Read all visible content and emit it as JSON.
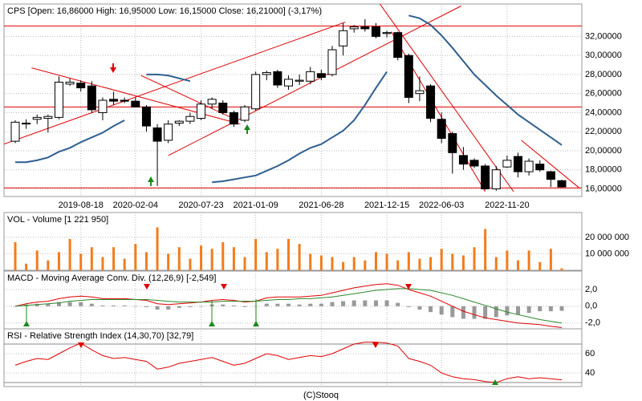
{
  "chart_data": [
    {
      "type": "candlestick",
      "title": "CPS [Open: 16,86000 High: 16,95000 Low: 16,15000 Close: 16,21000] (-3,17%)",
      "categories": [
        null,
        null,
        null,
        null,
        null,
        null,
        "2019-08-18",
        null,
        null,
        null,
        null,
        "2020-02-04",
        null,
        null,
        null,
        null,
        null,
        "2020-07-23",
        null,
        null,
        null,
        null,
        "2021-01-09",
        null,
        null,
        null,
        null,
        null,
        "2021-06-28",
        null,
        null,
        null,
        null,
        null,
        "2021-12-15",
        null,
        null,
        null,
        null,
        "2022-06-03",
        null,
        null,
        null,
        null,
        null,
        "2022-11-20",
        null,
        null,
        null,
        null,
        null
      ],
      "open": [
        21.0,
        22.8,
        23.3,
        23.4,
        23.5,
        27.0,
        27.1,
        26.8,
        24.0,
        25.4,
        25.3,
        25.2,
        24.6,
        22.4,
        21.1,
        22.9,
        23.1,
        23.4,
        24.9,
        25.0,
        24.0,
        23.2,
        24.4,
        28.0,
        28.3,
        26.8,
        27.3,
        27.3,
        28.1,
        28.0,
        31.0,
        32.8,
        33.0,
        33.0,
        32.3,
        32.4,
        30.0,
        26.0,
        26.8,
        23.3,
        21.8,
        19.5,
        19.0,
        18.4,
        16.0,
        18.3,
        19.4,
        17.8,
        18.6,
        17.8,
        16.86
      ],
      "high": [
        23.2,
        23.3,
        23.8,
        23.8,
        27.8,
        27.6,
        27.4,
        27.3,
        25.6,
        26.2,
        25.6,
        25.6,
        24.8,
        22.8,
        23.2,
        23.2,
        24.0,
        25.3,
        25.6,
        25.3,
        24.2,
        24.8,
        28.3,
        28.4,
        28.5,
        27.9,
        28.0,
        28.8,
        28.5,
        31.0,
        33.4,
        33.2,
        33.8,
        33.4,
        32.6,
        32.5,
        30.2,
        27.8,
        27.0,
        24.0,
        22.0,
        20.4,
        19.2,
        18.6,
        18.4,
        19.5,
        19.8,
        19.2,
        19.0,
        17.9,
        16.95
      ],
      "low": [
        20.8,
        22.3,
        22.8,
        21.9,
        23.3,
        26.8,
        26.2,
        24.0,
        23.2,
        24.8,
        25.0,
        24.8,
        22.0,
        16.3,
        20.8,
        22.6,
        22.8,
        23.2,
        24.4,
        23.8,
        22.5,
        23.0,
        24.2,
        27.4,
        26.6,
        26.4,
        26.9,
        27.0,
        27.4,
        27.8,
        30.0,
        32.4,
        32.5,
        31.8,
        31.9,
        29.5,
        25.0,
        25.2,
        23.0,
        20.8,
        17.6,
        18.0,
        18.2,
        15.9,
        15.8,
        18.2,
        17.2,
        17.4,
        17.8,
        16.2,
        16.15
      ],
      "close": [
        23.0,
        22.9,
        23.5,
        23.6,
        27.2,
        27.2,
        26.6,
        24.3,
        25.3,
        25.2,
        25.2,
        24.6,
        22.6,
        21.0,
        22.8,
        23.1,
        23.6,
        24.9,
        25.4,
        24.0,
        22.8,
        24.6,
        28.0,
        28.2,
        26.9,
        27.5,
        27.4,
        28.3,
        27.7,
        30.6,
        32.6,
        33.0,
        32.8,
        32.0,
        32.4,
        29.8,
        25.6,
        26.3,
        23.4,
        21.3,
        19.8,
        18.6,
        18.4,
        16.0,
        18.0,
        19.0,
        17.8,
        18.9,
        18.0,
        17.0,
        16.21
      ],
      "ma": {
        "color": "#2f5f8f",
        "values": [
          18.8,
          18.8,
          19.0,
          19.3,
          19.9,
          20.3,
          20.9,
          21.4,
          21.9,
          22.6,
          23.2,
          null,
          28.0,
          28.0,
          27.9,
          27.6,
          27.3,
          null,
          16.7,
          16.8,
          17.0,
          17.2,
          17.4,
          17.9,
          18.4,
          19.0,
          19.7,
          20.3,
          20.7,
          21.4,
          22.1,
          23.2,
          24.8,
          26.6,
          28.3,
          null,
          34.2,
          33.9,
          33.2,
          32.1,
          30.8,
          29.4,
          28.0,
          26.9,
          25.8,
          24.8,
          23.8,
          23.0,
          22.2,
          21.4,
          20.6
        ]
      },
      "line_color": "#e00000",
      "hlines": [
        33.1,
        24.6,
        16.1
      ],
      "trend_lines": [
        {
          "from": [
            -1.03,
            20.7
          ],
          "to": [
            30.2,
            33.5
          ]
        },
        {
          "from": [
            1.5,
            28.7
          ],
          "to": [
            20.6,
            22.8
          ]
        },
        {
          "from": [
            11.5,
            27.9
          ],
          "to": [
            20.3,
            23.2
          ]
        },
        {
          "from": [
            14.0,
            19.5
          ],
          "to": [
            40.8,
            35.2
          ]
        },
        {
          "from": [
            33.3,
            35.5
          ],
          "to": [
            45.6,
            15.7
          ]
        },
        {
          "from": [
            34.4,
            32.5
          ],
          "to": [
            43.0,
            15.7
          ]
        },
        {
          "from": [
            46.3,
            21.1
          ],
          "to": [
            51.6,
            16.1
          ]
        }
      ],
      "ylim": [
        15.2,
        35.4
      ],
      "yticks": [
        {
          "value": 16,
          "label": "16,00000"
        },
        {
          "value": 18,
          "label": "18,00000"
        },
        {
          "value": 20,
          "label": "20,00000"
        },
        {
          "value": 22,
          "label": "22,00000"
        },
        {
          "value": 24,
          "label": "24,00000"
        },
        {
          "value": 26,
          "label": "26,00000"
        },
        {
          "value": 28,
          "label": "28,00000"
        },
        {
          "value": 30,
          "label": "30,00000"
        },
        {
          "value": 32,
          "label": "32,00000"
        }
      ],
      "grid": true
    },
    {
      "type": "bar",
      "title": "VOL - Volume [1 221 950]",
      "color": "#f27c1c",
      "values": [
        17000000,
        4000000,
        12000000,
        6000000,
        11000000,
        19000000,
        10000000,
        14000000,
        8000000,
        14000000,
        7000000,
        16000000,
        11000000,
        26000000,
        10000000,
        14000000,
        7000000,
        15000000,
        13000000,
        17000000,
        14000000,
        8000000,
        19000000,
        11000000,
        13000000,
        19000000,
        16000000,
        10000000,
        9000000,
        8000000,
        5000000,
        8000000,
        6000000,
        11000000,
        10000000,
        6000000,
        11000000,
        7000000,
        8000000,
        13000000,
        10000000,
        9000000,
        14000000,
        25000000,
        8000000,
        12000000,
        6000000,
        12000000,
        5000000,
        13000000,
        1221950
      ],
      "ylim": [
        0,
        35000000
      ],
      "yticks": [
        {
          "value": 10000000,
          "label": "10 000 000"
        },
        {
          "value": 20000000,
          "label": "20 000 000"
        }
      ],
      "grid": true
    },
    {
      "type": "line",
      "title": "MACD - Moving Average Conv. Div. (12,26,9) [-2,549]",
      "histogram": {
        "color": "#999999",
        "values": [
          0.0,
          0.2,
          0.3,
          0.3,
          0.5,
          0.5,
          0.5,
          0.3,
          0.1,
          0.1,
          0.1,
          0.0,
          -0.1,
          -0.4,
          -0.4,
          -0.2,
          -0.1,
          0.0,
          0.2,
          0.2,
          0.1,
          -0.1,
          0.0,
          0.3,
          0.3,
          0.3,
          0.2,
          0.3,
          0.3,
          0.5,
          0.6,
          0.7,
          0.7,
          0.7,
          0.7,
          0.4,
          -0.1,
          -0.4,
          -0.7,
          -1.0,
          -1.3,
          -1.5,
          -1.5,
          -1.5,
          -1.3,
          -1.1,
          -1.0,
          -0.8,
          -0.6,
          -0.6,
          -0.549
        ]
      },
      "series": [
        {
          "color": "#e00000",
          "values": [
            0.0,
            0.3,
            0.5,
            0.6,
            0.9,
            1.1,
            1.2,
            1.1,
            0.9,
            0.9,
            0.9,
            0.8,
            0.7,
            0.3,
            0.2,
            0.3,
            0.4,
            0.5,
            0.7,
            0.8,
            0.7,
            0.5,
            0.6,
            1.0,
            1.1,
            1.1,
            1.1,
            1.2,
            1.3,
            1.6,
            1.9,
            2.2,
            2.4,
            2.6,
            2.7,
            2.5,
            2.0,
            1.6,
            1.2,
            0.6,
            0.0,
            -0.6,
            -1.0,
            -1.4,
            -1.6,
            -1.8,
            -2.0,
            -2.1,
            -2.2,
            -2.4,
            -2.549
          ]
        },
        {
          "color": "#2a8a2a",
          "values": [
            0.0,
            0.1,
            0.2,
            0.3,
            0.4,
            0.6,
            0.7,
            0.8,
            0.8,
            0.8,
            0.8,
            0.8,
            0.8,
            0.7,
            0.6,
            0.5,
            0.5,
            0.5,
            0.5,
            0.6,
            0.6,
            0.6,
            0.6,
            0.7,
            0.8,
            0.8,
            0.9,
            0.9,
            1.0,
            1.1,
            1.3,
            1.5,
            1.7,
            1.9,
            2.0,
            2.1,
            2.1,
            2.0,
            1.9,
            1.6,
            1.3,
            0.9,
            0.5,
            0.1,
            -0.3,
            -0.7,
            -1.0,
            -1.3,
            -1.6,
            -1.8,
            -2.0
          ]
        }
      ],
      "ylim": [
        -2.7,
        4.2
      ],
      "yticks": [
        {
          "value": 2,
          "label": "2,0"
        },
        {
          "value": 0,
          "label": "0,0"
        },
        {
          "value": -2,
          "label": "-2,0"
        }
      ],
      "grid": true
    },
    {
      "type": "line",
      "title": "RSI - Relative Strength Index (14,30,70) [32,79]",
      "levels": [
        30,
        70
      ],
      "series": [
        {
          "color": "#e00000",
          "values": [
            48,
            52,
            55,
            54,
            60,
            66,
            71,
            64,
            58,
            55,
            56,
            54,
            52,
            44,
            46,
            50,
            52,
            54,
            56,
            52,
            48,
            50,
            55,
            60,
            58,
            54,
            56,
            58,
            57,
            60,
            65,
            70,
            72,
            72,
            71,
            68,
            55,
            52,
            48,
            40,
            36,
            34,
            33,
            31,
            30,
            34,
            36,
            34,
            35,
            34,
            32.79
          ]
        }
      ],
      "ylim": [
        25.8,
        85.8
      ],
      "yticks": [
        40,
        60
      ],
      "grid": true
    }
  ]
}
